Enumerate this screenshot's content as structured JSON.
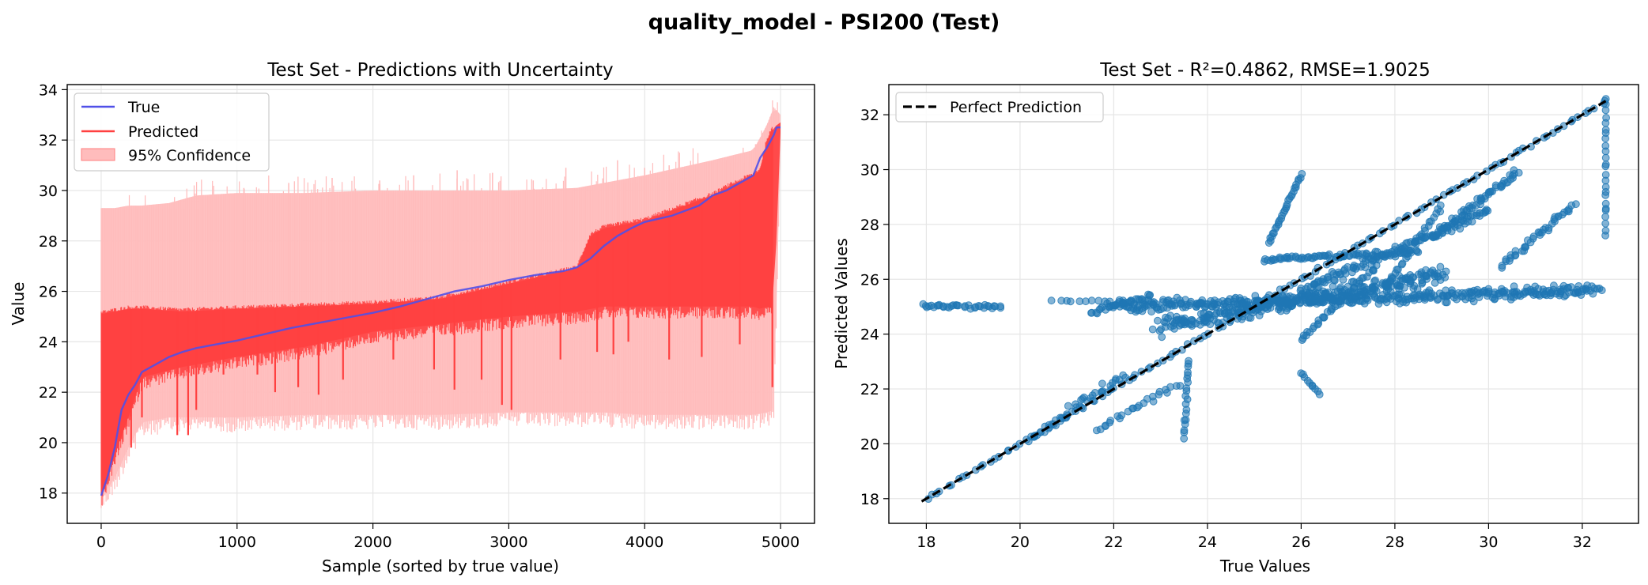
{
  "figure": {
    "suptitle": "quality_model - PSI200 (Test)"
  },
  "colors": {
    "true_line": "#5050e8",
    "predicted_line": "#ff4040",
    "confidence_fill": "#ffbcbc",
    "scatter_point": "#1f77b4",
    "perfect_line": "#000000",
    "grid": "#e6e6e6"
  },
  "chart_data": [
    {
      "type": "line",
      "title": "Test Set - Predictions with Uncertainty",
      "xlabel": "Sample (sorted by true value)",
      "ylabel": "Value",
      "xlim": [
        -250,
        5250
      ],
      "ylim": [
        16.8,
        34.2
      ],
      "xticks": [
        0,
        1000,
        2000,
        3000,
        4000,
        5000
      ],
      "yticks": [
        18,
        20,
        22,
        24,
        26,
        28,
        30,
        32,
        34
      ],
      "grid": true,
      "legend_position": "upper-left",
      "legend": [
        "True",
        "Predicted",
        "95% Confidence"
      ],
      "true_curve": {
        "x": [
          0,
          50,
          100,
          150,
          200,
          250,
          300,
          400,
          500,
          600,
          700,
          800,
          1000,
          1200,
          1400,
          1600,
          1800,
          2000,
          2200,
          2400,
          2600,
          2800,
          3000,
          3200,
          3400,
          3500,
          3600,
          3700,
          3800,
          3900,
          4000,
          4200,
          4400,
          4500,
          4600,
          4700,
          4800,
          4850,
          4900,
          4950,
          4970,
          5000
        ],
        "y": [
          17.9,
          18.7,
          19.8,
          21.3,
          21.9,
          22.3,
          22.8,
          23.1,
          23.4,
          23.6,
          23.75,
          23.85,
          24.05,
          24.3,
          24.55,
          24.75,
          24.95,
          25.15,
          25.4,
          25.7,
          26.0,
          26.2,
          26.45,
          26.65,
          26.8,
          26.95,
          27.3,
          27.8,
          28.2,
          28.5,
          28.75,
          29.0,
          29.4,
          29.8,
          30.0,
          30.3,
          30.6,
          31.3,
          31.7,
          32.2,
          32.5,
          32.5
        ]
      },
      "predicted_band": {
        "x": [
          0,
          100,
          200,
          300,
          600,
          1000,
          1500,
          2000,
          2500,
          3000,
          3500,
          3600,
          3700,
          4000,
          4500,
          4600,
          4800,
          4850,
          4900,
          4950,
          5000
        ],
        "lower": [
          17.9,
          19.5,
          21.0,
          22.6,
          23.0,
          23.4,
          23.8,
          24.4,
          24.7,
          25.0,
          25.2,
          25.3,
          25.4,
          25.4,
          25.4,
          25.4,
          25.4,
          25.3,
          25.4,
          25.3,
          32.3
        ],
        "upper": [
          25.1,
          25.2,
          25.3,
          25.3,
          25.2,
          25.3,
          25.4,
          25.5,
          25.7,
          26.3,
          26.9,
          28.2,
          28.5,
          28.8,
          29.8,
          30.1,
          30.6,
          30.8,
          32.0,
          32.5,
          32.7
        ]
      },
      "confidence_band": {
        "x": [
          0,
          100,
          200,
          300,
          500,
          700,
          1000,
          1500,
          2000,
          2500,
          3000,
          3500,
          3700,
          4000,
          4500,
          4800,
          4900,
          4950,
          5000
        ],
        "lower": [
          17.8,
          18.6,
          19.8,
          20.8,
          21.0,
          21.0,
          21.0,
          21.1,
          21.1,
          21.1,
          21.2,
          21.2,
          21.2,
          21.1,
          21.1,
          21.1,
          21.2,
          21.3,
          31.6
        ],
        "upper": [
          29.3,
          29.3,
          29.4,
          29.4,
          29.5,
          29.8,
          29.9,
          29.9,
          30.0,
          30.0,
          30.0,
          30.1,
          30.3,
          30.6,
          31.2,
          31.6,
          32.6,
          33.3,
          33.0
        ]
      },
      "dips": [
        {
          "x": 220,
          "y": 19.8
        },
        {
          "x": 300,
          "y": 21.0
        },
        {
          "x": 560,
          "y": 20.3
        },
        {
          "x": 640,
          "y": 20.3
        },
        {
          "x": 700,
          "y": 21.3
        },
        {
          "x": 900,
          "y": 22.7
        },
        {
          "x": 1150,
          "y": 22.7
        },
        {
          "x": 1280,
          "y": 22.0
        },
        {
          "x": 1450,
          "y": 22.2
        },
        {
          "x": 1600,
          "y": 21.9
        },
        {
          "x": 1780,
          "y": 22.5
        },
        {
          "x": 2150,
          "y": 23.3
        },
        {
          "x": 2450,
          "y": 22.9
        },
        {
          "x": 2600,
          "y": 22.1
        },
        {
          "x": 2800,
          "y": 22.5
        },
        {
          "x": 2950,
          "y": 21.5
        },
        {
          "x": 3020,
          "y": 21.3
        },
        {
          "x": 3380,
          "y": 23.3
        },
        {
          "x": 3650,
          "y": 23.6
        },
        {
          "x": 3770,
          "y": 23.5
        },
        {
          "x": 3880,
          "y": 24.0
        },
        {
          "x": 4180,
          "y": 23.3
        },
        {
          "x": 4420,
          "y": 23.4
        },
        {
          "x": 4700,
          "y": 23.9
        },
        {
          "x": 4940,
          "y": 22.2
        }
      ],
      "spikes": [
        {
          "x": 1050,
          "y": 30.1
        },
        {
          "x": 1380,
          "y": 30.3
        },
        {
          "x": 1700,
          "y": 30.5
        },
        {
          "x": 2050,
          "y": 30.4
        },
        {
          "x": 2300,
          "y": 30.6
        },
        {
          "x": 2620,
          "y": 30.8
        },
        {
          "x": 2880,
          "y": 30.7
        },
        {
          "x": 3180,
          "y": 30.4
        },
        {
          "x": 3420,
          "y": 30.9
        },
        {
          "x": 3800,
          "y": 31.2
        },
        {
          "x": 4000,
          "y": 30.9
        },
        {
          "x": 4180,
          "y": 31.0
        },
        {
          "x": 4600,
          "y": 31.2
        },
        {
          "x": 4870,
          "y": 31.8
        }
      ]
    },
    {
      "type": "scatter",
      "title": "Test Set - R²=0.4862, RMSE=1.9025",
      "xlabel": "True Values",
      "ylabel": "Predicted Values",
      "xlim": [
        17.2,
        33.2
      ],
      "ylim": [
        17.1,
        33.1
      ],
      "xticks": [
        18,
        20,
        22,
        24,
        26,
        28,
        30,
        32
      ],
      "yticks": [
        18,
        20,
        22,
        24,
        26,
        28,
        30,
        32
      ],
      "grid": true,
      "legend_position": "upper-left",
      "legend": [
        "Perfect Prediction"
      ],
      "reference_line": {
        "x": [
          17.9,
          32.5
        ],
        "y": [
          17.9,
          32.5
        ]
      },
      "clusters": [
        {
          "x": [
            18.0,
            32.5
          ],
          "y": [
            18.0,
            32.5
          ],
          "n": 130,
          "spread": 0.08
        },
        {
          "x": [
            17.9,
            19.6
          ],
          "y": [
            25.0,
            25.0
          ],
          "n": 35,
          "spread": 0.12
        },
        {
          "x": [
            20.7,
            21.9
          ],
          "y": [
            25.2,
            25.2
          ],
          "n": 10,
          "spread": 0.05
        },
        {
          "x": [
            22.0,
            32.3
          ],
          "y": [
            25.0,
            25.6
          ],
          "n": 420,
          "spread": 0.3
        },
        {
          "x": [
            23.0,
            29.0
          ],
          "y": [
            24.3,
            26.2
          ],
          "n": 300,
          "spread": 0.45
        },
        {
          "x": [
            25.2,
            28.5
          ],
          "y": [
            26.7,
            27.0
          ],
          "n": 80,
          "spread": 0.12
        },
        {
          "x": [
            26.0,
            30.0
          ],
          "y": [
            25.6,
            28.5
          ],
          "n": 120,
          "spread": 0.25
        },
        {
          "x": [
            21.5,
            22.8
          ],
          "y": [
            24.8,
            25.4
          ],
          "n": 30,
          "spread": 0.2
        },
        {
          "x": [
            20.2,
            22.2
          ],
          "y": [
            20.2,
            22.5
          ],
          "n": 40,
          "spread": 0.2
        },
        {
          "x": [
            21.6,
            23.4
          ],
          "y": [
            20.5,
            22.2
          ],
          "n": 25,
          "spread": 0.15
        },
        {
          "x": [
            23.5,
            23.6
          ],
          "y": [
            20.2,
            23.1
          ],
          "n": 20,
          "spread": 0.05
        },
        {
          "x": [
            26.0,
            26.4
          ],
          "y": [
            22.6,
            21.8
          ],
          "n": 10,
          "spread": 0.05
        },
        {
          "x": [
            25.3,
            26.0
          ],
          "y": [
            27.3,
            29.8
          ],
          "n": 30,
          "spread": 0.05
        },
        {
          "x": [
            26.0,
            27.6
          ],
          "y": [
            23.8,
            26.5
          ],
          "n": 40,
          "spread": 0.12
        },
        {
          "x": [
            28.8,
            30.6
          ],
          "y": [
            27.5,
            29.9
          ],
          "n": 60,
          "spread": 0.15
        },
        {
          "x": [
            30.3,
            31.8
          ],
          "y": [
            26.5,
            28.7
          ],
          "n": 40,
          "spread": 0.18
        },
        {
          "x": [
            32.5,
            32.5
          ],
          "y": [
            27.6,
            32.5
          ],
          "n": 25,
          "spread": 0.02
        },
        {
          "x": [
            27.8,
            29.0
          ],
          "y": [
            25.7,
            28.7
          ],
          "n": 30,
          "spread": 0.1
        }
      ]
    }
  ]
}
